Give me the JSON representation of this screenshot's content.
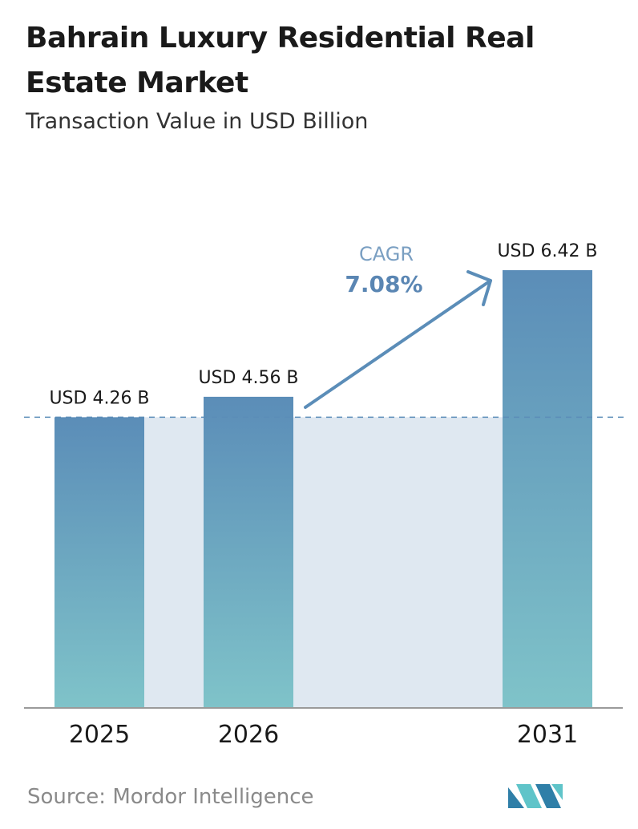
{
  "title": "Bahrain Luxury Residential Real Estate Market",
  "subtitle": "Transaction Value in USD Billion",
  "source": "Source:  Mordor Intelligence",
  "chart_data": {
    "type": "bar",
    "title": "Bahrain Luxury Residential Real Estate Market",
    "subtitle": "Transaction Value in USD Billion",
    "categories": [
      "2025",
      "2026",
      "2031"
    ],
    "values": [
      4.26,
      4.56,
      6.42
    ],
    "value_labels": [
      "USD 4.26 B",
      "USD 4.56 B",
      "USD 6.42 B"
    ],
    "ylim": [
      0,
      6.42
    ],
    "grid": false,
    "annotations": {
      "cagr_label": "CAGR",
      "cagr_value": "7.08%",
      "reference_line": "dashed line at the 2025 value"
    },
    "colors": {
      "bar_top": "#5b8db8",
      "bar_bottom": "#7fc3c9",
      "band": "#dfe8f1",
      "arrow": "#5b8db8",
      "cagr_label": "#7a9fc2",
      "cagr_value": "#5a86b3",
      "dashed_line": "#5b8db8",
      "axis": "#9a9a9a"
    }
  }
}
